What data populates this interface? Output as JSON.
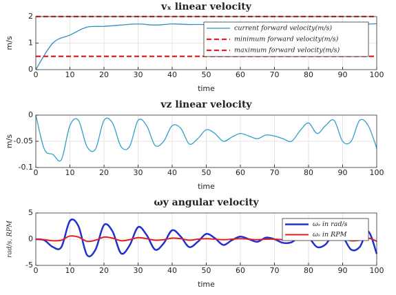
{
  "chart_data": [
    {
      "type": "line",
      "title": "vₓ linear velocity",
      "x_label": "time",
      "y_label": "m/s",
      "xlim": [
        0,
        100
      ],
      "xticks": [
        0,
        10,
        20,
        30,
        40,
        50,
        60,
        70,
        80,
        90,
        100
      ],
      "ylim": [
        0,
        2
      ],
      "yticks": [
        0,
        1,
        2
      ],
      "grid": true,
      "legend": "upper right",
      "x": [
        0,
        5,
        10,
        15,
        20,
        25,
        30,
        35,
        40,
        45,
        50,
        55,
        60,
        65,
        70,
        75,
        80,
        85,
        90,
        95,
        100
      ],
      "series": [
        {
          "name": "current forward velocity(m/s)",
          "color": "#2f8fbf",
          "dash": false,
          "values": [
            0,
            1.0,
            1.3,
            1.6,
            1.63,
            1.68,
            1.72,
            1.68,
            1.72,
            1.7,
            1.7,
            1.66,
            1.7,
            1.68,
            1.7,
            1.68,
            1.7,
            1.68,
            1.68,
            1.7,
            1.73
          ]
        },
        {
          "name": "minimum forward velocity(m/s)",
          "color": "#e02020",
          "dash": true,
          "values": [
            0.5,
            0.5,
            0.5,
            0.5,
            0.5,
            0.5,
            0.5,
            0.5,
            0.5,
            0.5,
            0.5,
            0.5,
            0.5,
            0.5,
            0.5,
            0.5,
            0.5,
            0.5,
            0.5,
            0.5,
            0.5
          ]
        },
        {
          "name": "maximum forward velocity(m/s)",
          "color": "#e02020",
          "dash": true,
          "values": [
            2,
            2,
            2,
            2,
            2,
            2,
            2,
            2,
            2,
            2,
            2,
            2,
            2,
            2,
            2,
            2,
            2,
            2,
            2,
            2,
            2
          ]
        }
      ]
    },
    {
      "type": "line",
      "title": "vz linear velocity",
      "x_label": "time",
      "y_label": "m/s",
      "xlim": [
        0,
        100
      ],
      "xticks": [
        0,
        10,
        20,
        30,
        40,
        50,
        60,
        70,
        80,
        90,
        100
      ],
      "ylim": [
        -0.1,
        0
      ],
      "yticks": [
        -0.1,
        -0.05,
        0
      ],
      "grid": true,
      "x": [
        0,
        2.5,
        5,
        7.5,
        10,
        12.5,
        15,
        17.5,
        20,
        22.5,
        25,
        27.5,
        30,
        32.5,
        35,
        37.5,
        40,
        42.5,
        45,
        47.5,
        50,
        52.5,
        55,
        57.5,
        60,
        62.5,
        65,
        67.5,
        70,
        72.5,
        75,
        77.5,
        80,
        82.5,
        85,
        87.5,
        90,
        92.5,
        95,
        97.5,
        100
      ],
      "series": [
        {
          "name": null,
          "color": "#2f9fc8",
          "dash": false,
          "values": [
            0,
            -0.065,
            -0.075,
            -0.085,
            -0.02,
            -0.01,
            -0.06,
            -0.065,
            -0.01,
            -0.015,
            -0.06,
            -0.06,
            -0.01,
            -0.02,
            -0.058,
            -0.05,
            -0.02,
            -0.025,
            -0.055,
            -0.045,
            -0.028,
            -0.035,
            -0.05,
            -0.042,
            -0.035,
            -0.04,
            -0.045,
            -0.038,
            -0.04,
            -0.045,
            -0.05,
            -0.03,
            -0.015,
            -0.035,
            -0.02,
            -0.01,
            -0.05,
            -0.05,
            -0.01,
            -0.02,
            -0.063
          ]
        }
      ]
    },
    {
      "type": "line",
      "title": "ωy angular velocity",
      "x_label": "time",
      "y_label": "rad/s, RPM",
      "xlim": [
        0,
        100
      ],
      "xticks": [
        0,
        10,
        20,
        30,
        40,
        50,
        60,
        70,
        80,
        90,
        100
      ],
      "ylim": [
        -5,
        5
      ],
      "yticks": [
        -5,
        0,
        5
      ],
      "grid": true,
      "legend": "upper right",
      "x": [
        0,
        2.5,
        5,
        7.5,
        10,
        12.5,
        15,
        17.5,
        20,
        22.5,
        25,
        27.5,
        30,
        32.5,
        35,
        37.5,
        40,
        42.5,
        45,
        47.5,
        50,
        52.5,
        55,
        57.5,
        60,
        62.5,
        65,
        67.5,
        70,
        72.5,
        75,
        77.5,
        80,
        82.5,
        85,
        87.5,
        90,
        92.5,
        95,
        97.5,
        100
      ],
      "series": [
        {
          "name": "ωₛ in rad/s",
          "color": "#1f2fd0",
          "dash": false,
          "width": 2.5,
          "values": [
            0,
            -0.2,
            -1.5,
            -1.5,
            3.5,
            2.5,
            -3,
            -2,
            2.7,
            1.5,
            -2.7,
            -1.2,
            2.3,
            0.8,
            -2,
            -0.8,
            1.7,
            0.5,
            -1.5,
            -0.5,
            1,
            0.2,
            -1.1,
            -0.2,
            0.5,
            0,
            -0.5,
            0.3,
            0,
            -0.7,
            -0.6,
            0.5,
            0.3,
            -1.5,
            -1,
            1.2,
            0.5,
            -2,
            -1.5,
            1.5,
            -2.8
          ]
        },
        {
          "name": "ωₛ in RPM",
          "color": "#e02020",
          "dash": false,
          "width": 2,
          "values": [
            0,
            -0.1,
            -0.3,
            -0.2,
            0.6,
            0.4,
            -0.4,
            -0.2,
            0.4,
            0.2,
            -0.3,
            -0.1,
            0.3,
            0.1,
            -0.2,
            -0.1,
            0.2,
            0.1,
            -0.2,
            0,
            0.1,
            0,
            -0.1,
            0,
            0.1,
            0,
            -0.1,
            0,
            0,
            -0.1,
            -0.1,
            0.1,
            0,
            -0.2,
            -0.1,
            0.1,
            0.1,
            -0.3,
            -0.2,
            0.2,
            -0.4
          ]
        }
      ]
    }
  ]
}
